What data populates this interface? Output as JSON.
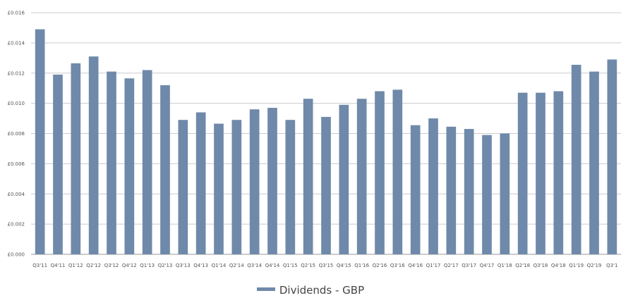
{
  "chart_data": {
    "type": "bar",
    "title": "",
    "xlabel": "",
    "ylabel": "",
    "ylim": [
      0,
      0.016
    ],
    "y_ticks": [
      "£0.000",
      "£0.002",
      "£0.004",
      "£0.006",
      "£0.008",
      "£0.010",
      "£0.012",
      "£0.014",
      "£0.016"
    ],
    "grid": true,
    "legend_position": "bottom",
    "categories": [
      "Q3'11",
      "Q4'11",
      "Q1'12",
      "Q2'12",
      "Q3'12",
      "Q4'12",
      "Q1'13",
      "Q2'13",
      "Q3'13",
      "Q4'13",
      "Q1'14",
      "Q2'14",
      "Q3'14",
      "Q4'14",
      "Q1'15",
      "Q2'15",
      "Q3'15",
      "Q4'15",
      "Q1'16",
      "Q2'16",
      "Q3'16",
      "Q4'16",
      "Q1'17",
      "Q2'17",
      "Q3'17",
      "Q4'17",
      "Q1'18",
      "Q2'18",
      "Q3'18",
      "Q4'18",
      "Q1'19",
      "Q2'19",
      "Q3'1"
    ],
    "series": [
      {
        "name": "Dividends - GBP",
        "color": "#6f89aa",
        "values": [
          0.0149,
          0.0119,
          0.01265,
          0.0131,
          0.0121,
          0.01165,
          0.0122,
          0.0112,
          0.0089,
          0.0094,
          0.00865,
          0.0089,
          0.0096,
          0.0097,
          0.0089,
          0.0103,
          0.0091,
          0.0099,
          0.0103,
          0.0108,
          0.0109,
          0.00855,
          0.009,
          0.00845,
          0.0083,
          0.0079,
          0.008,
          0.0107,
          0.0107,
          0.0108,
          0.01255,
          0.0121,
          0.0129
        ]
      }
    ]
  }
}
